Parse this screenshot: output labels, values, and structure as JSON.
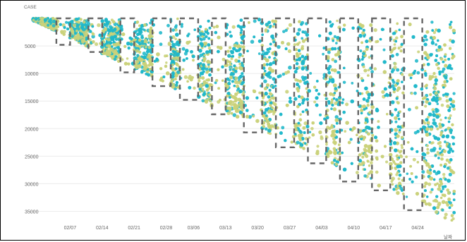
{
  "chart_data": {
    "type": "scatter",
    "title": "",
    "ylabel": "CASE",
    "xlabel": "날짜",
    "y_inverted": true,
    "ylim": [
      0,
      37500
    ],
    "xlim": [
      "2021-01-29",
      "2021-05-02"
    ],
    "grid": "horizontal",
    "y_ticks": [
      {
        "value": 5000,
        "label": "5000"
      },
      {
        "value": 10000,
        "label": "10000"
      },
      {
        "value": 15000,
        "label": "15000"
      },
      {
        "value": 20000,
        "label": "20000"
      },
      {
        "value": 25000,
        "label": "25000"
      },
      {
        "value": 30000,
        "label": "30000"
      },
      {
        "value": 35000,
        "label": "35000"
      }
    ],
    "x_ticks": [
      {
        "date": "2021-02-07",
        "label": "02/07"
      },
      {
        "date": "2021-02-14",
        "label": "02/14"
      },
      {
        "date": "2021-02-21",
        "label": "02/21"
      },
      {
        "date": "2021-02-28",
        "label": "02/28"
      },
      {
        "date": "2021-03-06",
        "label": "03/06"
      },
      {
        "date": "2021-03-13",
        "label": "03/13"
      },
      {
        "date": "2021-03-20",
        "label": "03/20"
      },
      {
        "date": "2021-03-27",
        "label": "03/27"
      },
      {
        "date": "2021-04-03",
        "label": "04/03"
      },
      {
        "date": "2021-04-10",
        "label": "04/10"
      },
      {
        "date": "2021-04-17",
        "label": "04/17"
      },
      {
        "date": "2021-04-24",
        "label": "04/24"
      }
    ],
    "boundary": [
      {
        "date": "2021-01-29",
        "case": 0
      },
      {
        "date": "2021-05-02",
        "case": 37000
      }
    ],
    "boxes": [
      {
        "start": "2021-02-04",
        "end": "2021-02-06",
        "case_max": 4800
      },
      {
        "start": "2021-02-11",
        "end": "2021-02-13",
        "case_max": 6100
      },
      {
        "start": "2021-02-18",
        "end": "2021-02-20",
        "case_max": 9800
      },
      {
        "start": "2021-02-25",
        "end": "2021-02-28",
        "case_max": 12300
      },
      {
        "start": "2021-03-03",
        "end": "2021-03-06",
        "case_max": 14800
      },
      {
        "start": "2021-03-10",
        "end": "2021-03-12",
        "case_max": 17400
      },
      {
        "start": "2021-03-17",
        "end": "2021-03-20",
        "case_max": 20700
      },
      {
        "start": "2021-03-24",
        "end": "2021-03-27",
        "case_max": 23400
      },
      {
        "start": "2021-03-31",
        "end": "2021-04-03",
        "case_max": 26300
      },
      {
        "start": "2021-04-07",
        "end": "2021-04-10",
        "case_max": 29600
      },
      {
        "start": "2021-04-14",
        "end": "2021-04-17",
        "case_max": 31200
      },
      {
        "start": "2021-04-21",
        "end": "2021-04-24",
        "case_max": 34800
      }
    ],
    "series": [
      {
        "color": "#1fb7c9"
      },
      {
        "color": "#c9d27a"
      }
    ],
    "box_color": "#666666"
  }
}
